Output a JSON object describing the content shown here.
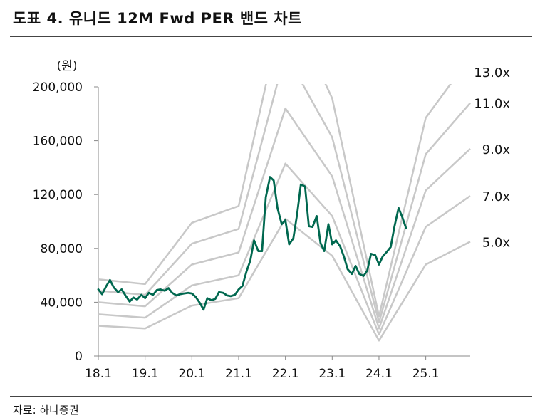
{
  "header": {
    "title": "도표 4. 유니드 12M Fwd PER 밴드 차트"
  },
  "footer": {
    "source": "자료: 하나증권"
  },
  "colors": {
    "price_line": "#00684f",
    "band_line": "#c8c8c8",
    "axis": "#888888"
  },
  "chart_data": {
    "type": "line",
    "title": "도표 4. 유니드 12M Fwd PER 밴드 차트",
    "unit_label": "(원)",
    "ylim": [
      0,
      200000
    ],
    "y_ticks": [
      0,
      40000,
      80000,
      120000,
      160000,
      200000
    ],
    "y_tick_labels": [
      "0",
      "40,000",
      "80,000",
      "120,000",
      "160,000",
      "200,000"
    ],
    "x_range": [
      2018.0,
      2025.95
    ],
    "x_ticks": [
      2018,
      2019,
      2020,
      2021,
      2022,
      2023,
      2024,
      2025
    ],
    "x_tick_labels": [
      "18.1",
      "19.1",
      "20.1",
      "21.1",
      "22.1",
      "23.1",
      "24.1",
      "25.1"
    ],
    "grid": false,
    "bands": [
      {
        "name": "5.0x",
        "points": [
          [
            2018,
            22500
          ],
          [
            2019,
            20500
          ],
          [
            2020,
            37500
          ],
          [
            2021,
            43000
          ],
          [
            2022,
            102000
          ],
          [
            2023,
            74500
          ],
          [
            2024,
            11500
          ],
          [
            2025,
            68000
          ],
          [
            2025.95,
            85000
          ]
        ]
      },
      {
        "name": "7.0x",
        "points": [
          [
            2018,
            31000
          ],
          [
            2019,
            28500
          ],
          [
            2020,
            52500
          ],
          [
            2021,
            60000
          ],
          [
            2022,
            143000
          ],
          [
            2023,
            104000
          ],
          [
            2024,
            16000
          ],
          [
            2025,
            96000
          ],
          [
            2025.95,
            119000
          ]
        ]
      },
      {
        "name": "9.0x",
        "points": [
          [
            2018,
            40000
          ],
          [
            2019,
            37000
          ],
          [
            2020,
            68000
          ],
          [
            2021,
            77000
          ],
          [
            2022,
            184000
          ],
          [
            2023,
            133500
          ],
          [
            2024,
            20500
          ],
          [
            2025,
            123000
          ],
          [
            2025.95,
            154000
          ]
        ]
      },
      {
        "name": "11.0x",
        "points": [
          [
            2018,
            48500
          ],
          [
            2019,
            45500
          ],
          [
            2020,
            83500
          ],
          [
            2021,
            94500
          ],
          [
            2022,
            225000
          ],
          [
            2023,
            162500
          ],
          [
            2024,
            25000
          ],
          [
            2025,
            150000
          ],
          [
            2025.95,
            188000
          ]
        ]
      },
      {
        "name": "13.0x",
        "points": [
          [
            2018,
            57000
          ],
          [
            2019,
            53500
          ],
          [
            2020,
            99000
          ],
          [
            2021,
            111500
          ],
          [
            2022,
            266000
          ],
          [
            2023,
            191500
          ],
          [
            2024,
            29500
          ],
          [
            2025,
            177000
          ],
          [
            2025.95,
            222000
          ]
        ]
      }
    ],
    "series": [
      {
        "points": [
          [
            2018.0,
            49500
          ],
          [
            2018.08,
            46000
          ],
          [
            2018.17,
            52000
          ],
          [
            2018.25,
            56500
          ],
          [
            2018.33,
            51000
          ],
          [
            2018.42,
            47500
          ],
          [
            2018.5,
            49500
          ],
          [
            2018.58,
            45000
          ],
          [
            2018.67,
            40500
          ],
          [
            2018.75,
            43500
          ],
          [
            2018.83,
            42000
          ],
          [
            2018.92,
            45500
          ],
          [
            2019.0,
            43000
          ],
          [
            2019.08,
            47000
          ],
          [
            2019.17,
            45500
          ],
          [
            2019.25,
            49000
          ],
          [
            2019.33,
            49500
          ],
          [
            2019.42,
            48500
          ],
          [
            2019.5,
            50500
          ],
          [
            2019.58,
            47000
          ],
          [
            2019.67,
            45000
          ],
          [
            2019.75,
            46000
          ],
          [
            2019.83,
            46500
          ],
          [
            2019.92,
            47000
          ],
          [
            2020.0,
            46500
          ],
          [
            2020.08,
            44000
          ],
          [
            2020.17,
            39500
          ],
          [
            2020.25,
            34500
          ],
          [
            2020.33,
            43000
          ],
          [
            2020.42,
            41500
          ],
          [
            2020.5,
            42500
          ],
          [
            2020.58,
            47500
          ],
          [
            2020.67,
            47000
          ],
          [
            2020.75,
            45000
          ],
          [
            2020.83,
            44500
          ],
          [
            2020.92,
            45500
          ],
          [
            2021.0,
            49500
          ],
          [
            2021.08,
            52000
          ],
          [
            2021.17,
            63000
          ],
          [
            2021.25,
            71000
          ],
          [
            2021.33,
            86000
          ],
          [
            2021.42,
            78000
          ],
          [
            2021.5,
            78000
          ],
          [
            2021.58,
            118000
          ],
          [
            2021.67,
            133000
          ],
          [
            2021.75,
            130500
          ],
          [
            2021.83,
            110000
          ],
          [
            2021.92,
            98000
          ],
          [
            2022.0,
            101000
          ],
          [
            2022.08,
            83000
          ],
          [
            2022.17,
            87500
          ],
          [
            2022.25,
            105500
          ],
          [
            2022.33,
            127500
          ],
          [
            2022.42,
            126000
          ],
          [
            2022.5,
            96500
          ],
          [
            2022.58,
            96000
          ],
          [
            2022.67,
            104000
          ],
          [
            2022.75,
            84000
          ],
          [
            2022.83,
            78000
          ],
          [
            2022.92,
            98000
          ],
          [
            2023.0,
            83000
          ],
          [
            2023.08,
            86000
          ],
          [
            2023.17,
            81500
          ],
          [
            2023.25,
            74000
          ],
          [
            2023.33,
            64500
          ],
          [
            2023.42,
            61000
          ],
          [
            2023.5,
            67000
          ],
          [
            2023.58,
            61000
          ],
          [
            2023.67,
            59500
          ],
          [
            2023.75,
            63500
          ],
          [
            2023.83,
            76000
          ],
          [
            2023.92,
            75000
          ],
          [
            2024.0,
            68000
          ],
          [
            2024.08,
            74000
          ],
          [
            2024.17,
            77500
          ],
          [
            2024.25,
            81000
          ],
          [
            2024.33,
            96000
          ],
          [
            2024.42,
            110000
          ],
          [
            2024.5,
            103000
          ],
          [
            2024.58,
            95000
          ]
        ]
      }
    ]
  }
}
